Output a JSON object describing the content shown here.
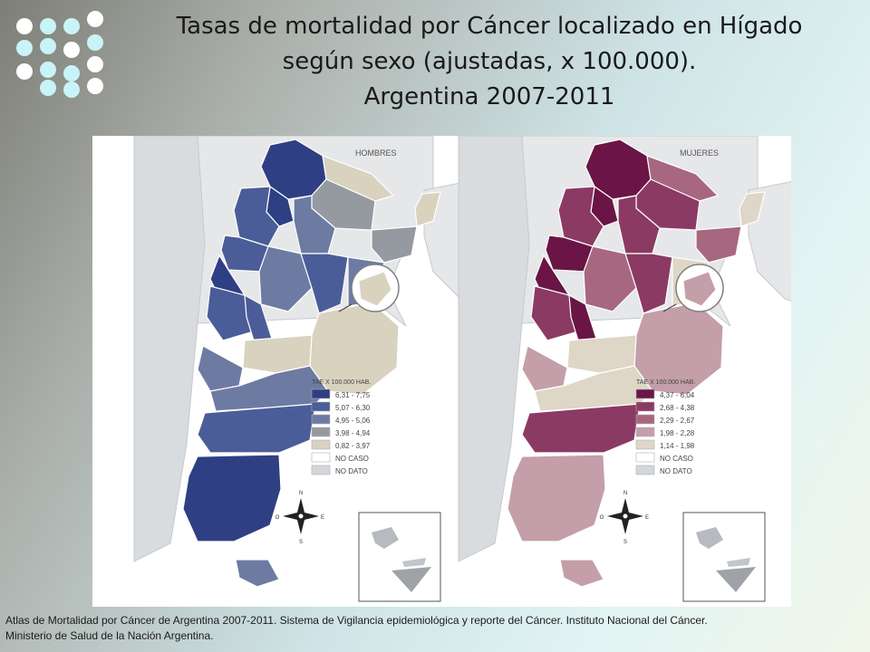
{
  "title": {
    "line1": "Tasas de mortalidad por Cáncer localizado en Hígado",
    "line2": "según sexo (ajustadas, x 100.000).",
    "line3": "Argentina 2007-2011"
  },
  "maps": [
    {
      "heading": "HOMBRES",
      "legend_title": "TAE X 100.000 HAB.",
      "legend": [
        {
          "label": "6,31 - 7,75",
          "color": "#2f3f84"
        },
        {
          "label": "5,07 - 6,30",
          "color": "#4b5d98"
        },
        {
          "label": "4,95 - 5,06",
          "color": "#6d7ba3"
        },
        {
          "label": "3,98 - 4,94",
          "color": "#959aa1"
        },
        {
          "label": "0,82 - 3,97",
          "color": "#d8d2bf"
        },
        {
          "label": "NO CASO",
          "color": "#ffffff"
        },
        {
          "label": "NO DATO",
          "color": "#d3d6da"
        }
      ]
    },
    {
      "heading": "MUJERES",
      "legend_title": "TAE X 100.000 HAB.",
      "legend": [
        {
          "label": "4,37 - 6,04",
          "color": "#6a1545"
        },
        {
          "label": "2,68 - 4,38",
          "color": "#8b3a63"
        },
        {
          "label": "2,29 - 2,67",
          "color": "#a7677f"
        },
        {
          "label": "1,98 - 2,28",
          "color": "#c49ea8"
        },
        {
          "label": "1,14 - 1,98",
          "color": "#ded6c6"
        },
        {
          "label": "NO CASO",
          "color": "#ffffff"
        },
        {
          "label": "NO DATO",
          "color": "#d3d6da"
        }
      ]
    }
  ],
  "compass_labels": {
    "n": "N",
    "s": "S",
    "e": "E",
    "o": "O"
  },
  "caption": {
    "line1": "Atlas de Mortalidad por Cáncer de Argentina 2007-2011. Sistema de Vigilancia epidemiológica y reporte del Cáncer. Instituto Nacional del Cáncer.",
    "line2": "Ministerio de Salud de la Nación Argentina."
  }
}
